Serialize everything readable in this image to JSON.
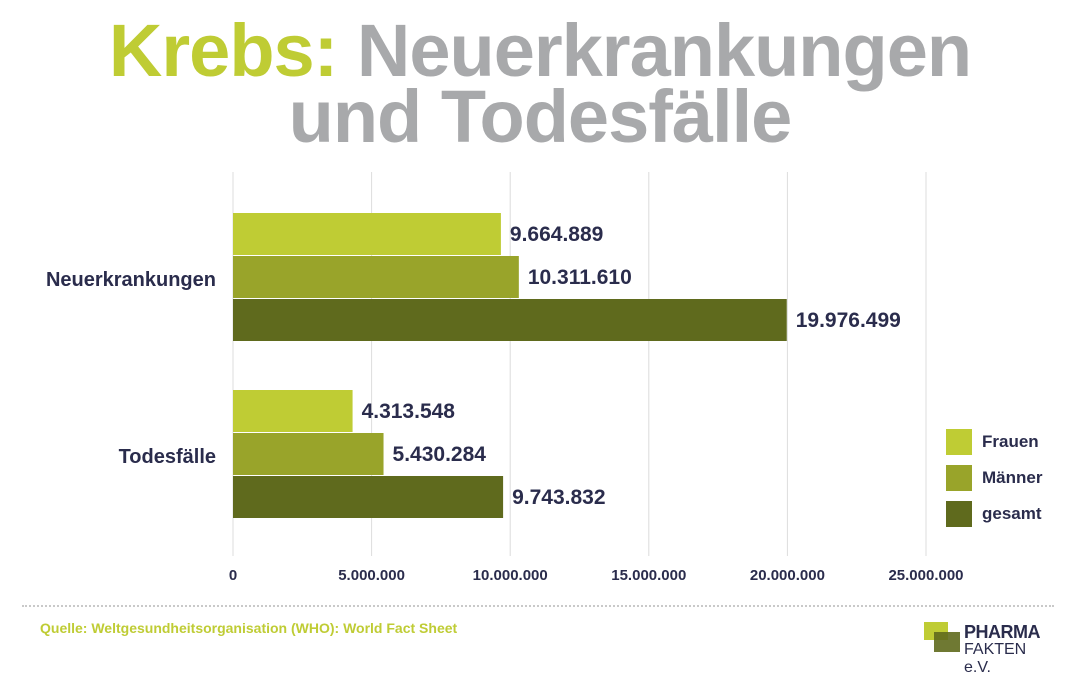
{
  "title": {
    "accent": "Krebs:",
    "line1_rest": "Neuerkrankungen",
    "line2": "und Todesfälle"
  },
  "colors": {
    "frauen": "#bfcc34",
    "maenner": "#99a42a",
    "gesamt": "#5f6a1d",
    "text": "#2a2c4c",
    "title_gray": "#a8a9ab"
  },
  "chart_data": {
    "type": "bar",
    "orientation": "horizontal",
    "categories": [
      "Neuerkrankungen",
      "Todesfälle"
    ],
    "series": [
      {
        "name": "Frauen",
        "values": [
          9664889,
          4313548
        ],
        "labels": [
          "9.664.889",
          "4.313.548"
        ]
      },
      {
        "name": "Männer",
        "values": [
          10311610,
          5430284
        ],
        "labels": [
          "10.311.610",
          "5.430.284"
        ]
      },
      {
        "name": "gesamt",
        "values": [
          19976499,
          9743832
        ],
        "labels": [
          "19.976.499",
          "9.743.832"
        ]
      }
    ],
    "xlim": [
      0,
      25000000
    ],
    "xticks": [
      0,
      5000000,
      10000000,
      15000000,
      20000000,
      25000000
    ],
    "xtick_labels": [
      "0",
      "5.000.000",
      "10.000.000",
      "15.000.000",
      "20.000.000",
      "25.000.000"
    ],
    "grid": true,
    "legend_position": "right"
  },
  "source": "Quelle: Weltgesundheitsorganisation (WHO): World Fact Sheet",
  "logo": {
    "line1": "PHARMA",
    "line2": "FAKTEN e.V."
  }
}
